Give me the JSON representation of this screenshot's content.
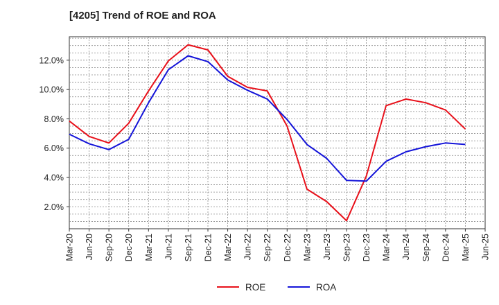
{
  "chart_data": {
    "type": "line",
    "title": "[4205]  Trend of ROE and ROA",
    "xlabel": "",
    "ylabel": "",
    "x": [
      "Mar-20",
      "Jun-20",
      "Sep-20",
      "Dec-20",
      "Mar-21",
      "Jun-21",
      "Sep-21",
      "Dec-21",
      "Mar-22",
      "Jun-22",
      "Sep-22",
      "Dec-22",
      "Mar-23",
      "Jun-23",
      "Sep-23",
      "Dec-23",
      "Mar-24",
      "Jun-24",
      "Sep-24",
      "Dec-24",
      "Mar-25",
      "Jun-25"
    ],
    "ylim": [
      0.5,
      13.6
    ],
    "yticks": [
      2.0,
      4.0,
      6.0,
      8.0,
      10.0,
      12.0
    ],
    "ytick_labels": [
      "2.0%",
      "4.0%",
      "6.0%",
      "8.0%",
      "10.0%",
      "12.0%"
    ],
    "grid": true,
    "legend_position": "bottom-center",
    "series": [
      {
        "name": "ROE",
        "color": "#e8101a",
        "values": [
          7.85,
          6.8,
          6.35,
          7.7,
          9.9,
          11.95,
          13.05,
          12.7,
          10.9,
          10.15,
          9.9,
          7.5,
          3.2,
          2.35,
          1.05,
          4.1,
          8.9,
          9.35,
          9.1,
          8.6,
          7.3,
          null
        ]
      },
      {
        "name": "ROA",
        "color": "#1414d9",
        "values": [
          6.95,
          6.3,
          5.9,
          6.6,
          9.1,
          11.35,
          12.3,
          11.9,
          10.65,
          9.95,
          9.35,
          7.95,
          6.25,
          5.3,
          3.8,
          3.75,
          5.1,
          5.75,
          6.1,
          6.35,
          6.25,
          null
        ]
      }
    ]
  }
}
